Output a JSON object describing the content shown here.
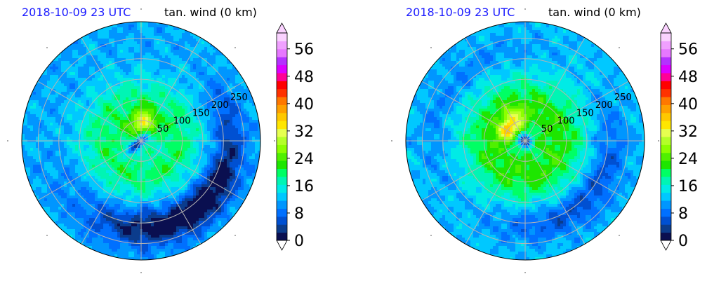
{
  "panels": [
    {
      "date": "2018-10-09 23 UTC",
      "variable": "tan. wind (0 km)"
    },
    {
      "date": "2018-10-09 23 UTC",
      "variable": "tan. wind (0 km)"
    }
  ],
  "colors": {
    "date_text": "#1a1aff",
    "grid": "#b4b4b4",
    "levels": [
      "#0a0f50",
      "#0b3c8c",
      "#0050d2",
      "#0070ff",
      "#0096ff",
      "#00c8ff",
      "#00ebe6",
      "#00f5b4",
      "#00ff64",
      "#1ee600",
      "#50f000",
      "#8cff00",
      "#b4ff28",
      "#e6ff50",
      "#ffe600",
      "#ffc800",
      "#ffa000",
      "#ff7800",
      "#ff3200",
      "#ff0000",
      "#ff0096",
      "#dc00ff",
      "#b432ff",
      "#e678ff",
      "#f0a0ff",
      "#fad2ff"
    ]
  },
  "chart_data": [
    {
      "type": "heatmap",
      "projection": "polar",
      "title": "tan. wind (0 km)",
      "subtitle": "2018-10-09 23 UTC",
      "radial_labels": [
        "50",
        "100",
        "150",
        "200",
        "250"
      ],
      "radial_values": [
        50,
        100,
        150,
        200,
        250
      ],
      "colorbar": {
        "ticks": [
          0,
          8,
          16,
          24,
          32,
          40,
          48,
          56
        ],
        "levels_step": 2.33,
        "extend": "both"
      },
      "grid": true,
      "features": [
        {
          "desc": "weak-wind core",
          "r": 20,
          "value": 4
        },
        {
          "desc": "max wind north",
          "r": 40,
          "value": 30
        },
        {
          "desc": "weak band east",
          "r": 230,
          "value": 6
        }
      ]
    },
    {
      "type": "heatmap",
      "projection": "polar",
      "title": "tan. wind (0 km)",
      "subtitle": "2018-10-09 23 UTC",
      "radial_labels": [
        "50",
        "100",
        "150",
        "200",
        "250"
      ],
      "radial_values": [
        50,
        100,
        150,
        200,
        250
      ],
      "colorbar": {
        "ticks": [
          0,
          8,
          16,
          24,
          32,
          40,
          48,
          56
        ],
        "levels_step": 2.33,
        "extend": "both"
      },
      "grid": true,
      "features": [
        {
          "desc": "weak-wind core",
          "r": 10,
          "value": 3
        },
        {
          "desc": "max wind northwest",
          "r": 50,
          "value": 32
        },
        {
          "desc": "weak band southeast",
          "r": 220,
          "value": 8
        }
      ]
    }
  ]
}
